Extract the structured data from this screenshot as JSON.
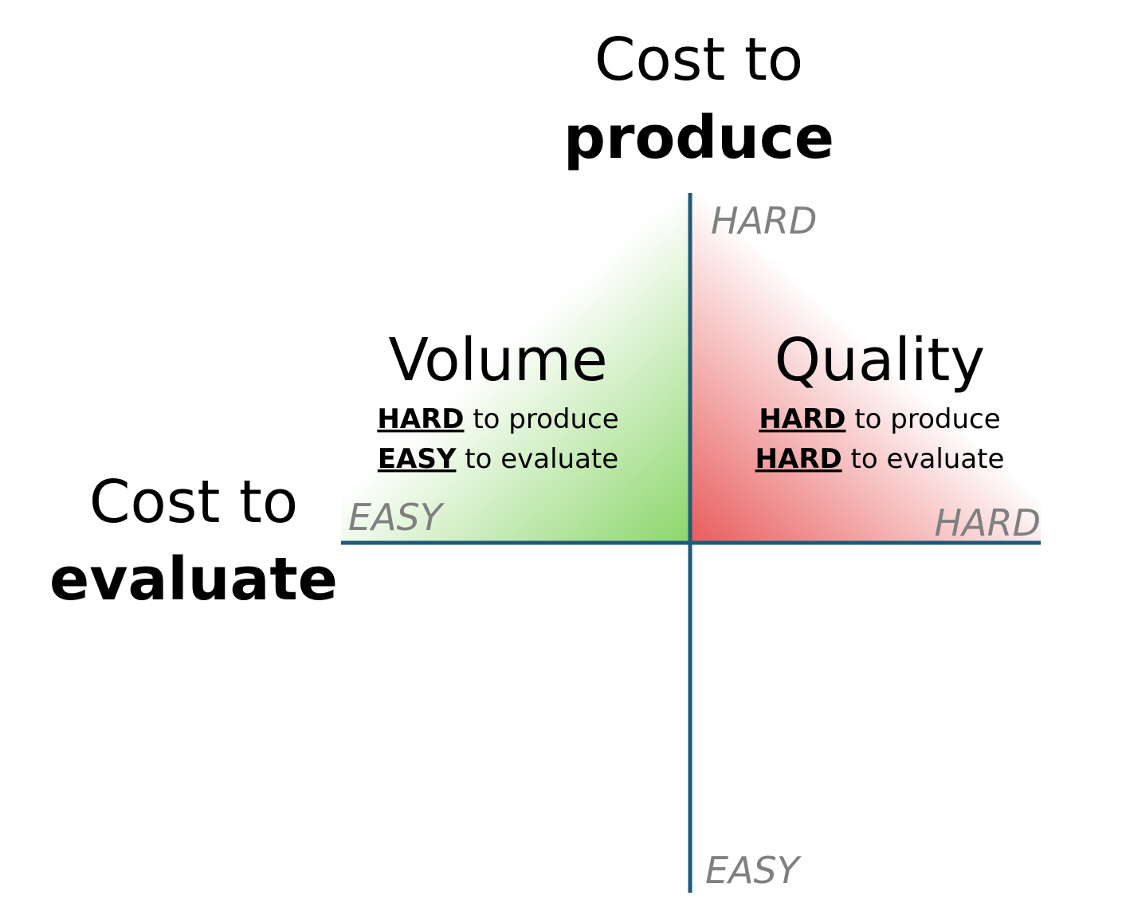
{
  "y_axis": {
    "title_line1": "Cost to",
    "title_line2": "produce",
    "top_label": "HARD",
    "bottom_label": "EASY"
  },
  "x_axis": {
    "title_line1": "Cost to",
    "title_line2": "evaluate",
    "left_label": "EASY",
    "right_label": "HARD"
  },
  "quadrants": [
    {
      "title": "Volume",
      "lines": [
        {
          "level": "HARD",
          "text": "to produce"
        },
        {
          "level": "EASY",
          "text": "to evaluate"
        }
      ]
    },
    {
      "title": "Quality",
      "lines": [
        {
          "level": "HARD",
          "text": "to produce"
        },
        {
          "level": "HARD",
          "text": "to evaluate"
        }
      ]
    }
  ]
}
